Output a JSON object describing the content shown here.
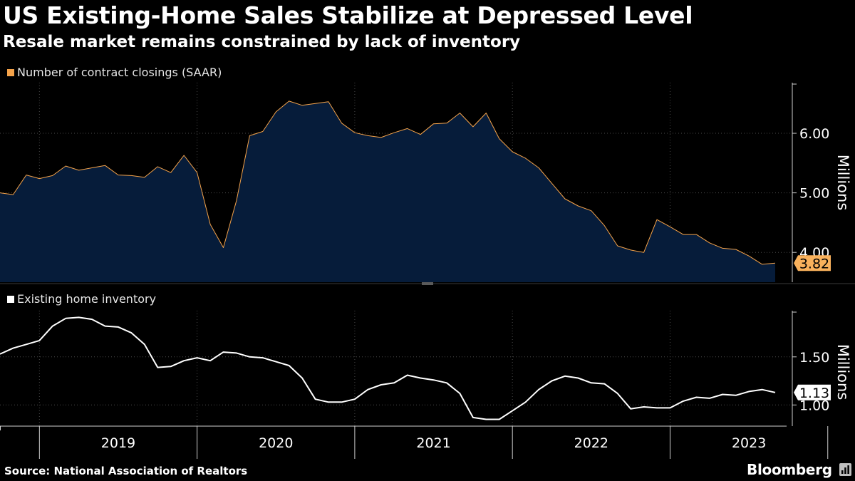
{
  "header": {
    "title": "US Existing-Home Sales Stabilize at Depressed Level",
    "subtitle": "Resale market remains constrained by lack of inventory"
  },
  "footer": {
    "source": "Source: National Association of Realtors",
    "brand": "Bloomberg"
  },
  "colors": {
    "background": "#000000",
    "sales_line": "#f5a34a",
    "sales_fill": "#061c3a",
    "inventory_line": "#ffffff",
    "label_bg_sales": "#f9b15c",
    "grid": "#4a4a4a"
  },
  "chart_data": [
    {
      "type": "area",
      "legend": "Number of contract closings (SAAR)",
      "ylabel": "Millions",
      "ylim": [
        3.5,
        6.85
      ],
      "yticks": [
        4.0,
        5.0,
        6.0
      ],
      "ytick_labels": [
        "4.00",
        "5.00",
        "6.00"
      ],
      "last_value_label": "3.82",
      "x_start": "2018-10",
      "series": [
        {
          "name": "Existing-home sales",
          "values": [
            5.0,
            4.97,
            5.3,
            5.24,
            5.29,
            5.45,
            5.38,
            5.42,
            5.46,
            5.3,
            5.29,
            5.26,
            5.44,
            5.34,
            5.63,
            5.34,
            4.47,
            4.08,
            4.87,
            5.96,
            6.03,
            6.36,
            6.54,
            6.47,
            6.5,
            6.53,
            6.17,
            6.01,
            5.96,
            5.93,
            6.01,
            6.08,
            5.98,
            6.16,
            6.17,
            6.34,
            6.11,
            6.34,
            5.91,
            5.69,
            5.58,
            5.42,
            5.16,
            4.9,
            4.78,
            4.7,
            4.45,
            4.11,
            4.04,
            4.0,
            4.55,
            4.43,
            4.3,
            4.3,
            4.16,
            4.07,
            4.05,
            3.94,
            3.8,
            3.82
          ]
        }
      ]
    },
    {
      "type": "line",
      "legend": "Existing home inventory",
      "ylabel": "Millions",
      "ylim": [
        0.78,
        1.98
      ],
      "yticks": [
        1.0,
        1.5
      ],
      "ytick_labels": [
        "1.00",
        "1.50"
      ],
      "last_value_label": "1.13",
      "x_start": "2018-10",
      "series": [
        {
          "name": "Inventory",
          "values": [
            1.53,
            1.59,
            1.63,
            1.67,
            1.82,
            1.9,
            1.91,
            1.89,
            1.82,
            1.81,
            1.75,
            1.63,
            1.39,
            1.4,
            1.46,
            1.49,
            1.46,
            1.55,
            1.54,
            1.5,
            1.49,
            1.45,
            1.41,
            1.28,
            1.06,
            1.03,
            1.03,
            1.06,
            1.16,
            1.21,
            1.23,
            1.31,
            1.28,
            1.26,
            1.23,
            1.12,
            0.87,
            0.85,
            0.85,
            0.94,
            1.03,
            1.16,
            1.25,
            1.3,
            1.28,
            1.23,
            1.22,
            1.12,
            0.96,
            0.98,
            0.97,
            0.97,
            1.04,
            1.08,
            1.07,
            1.11,
            1.1,
            1.14,
            1.16,
            1.13
          ]
        }
      ]
    }
  ],
  "x_axis": {
    "years": [
      "2019",
      "2020",
      "2021",
      "2022",
      "2023"
    ]
  }
}
